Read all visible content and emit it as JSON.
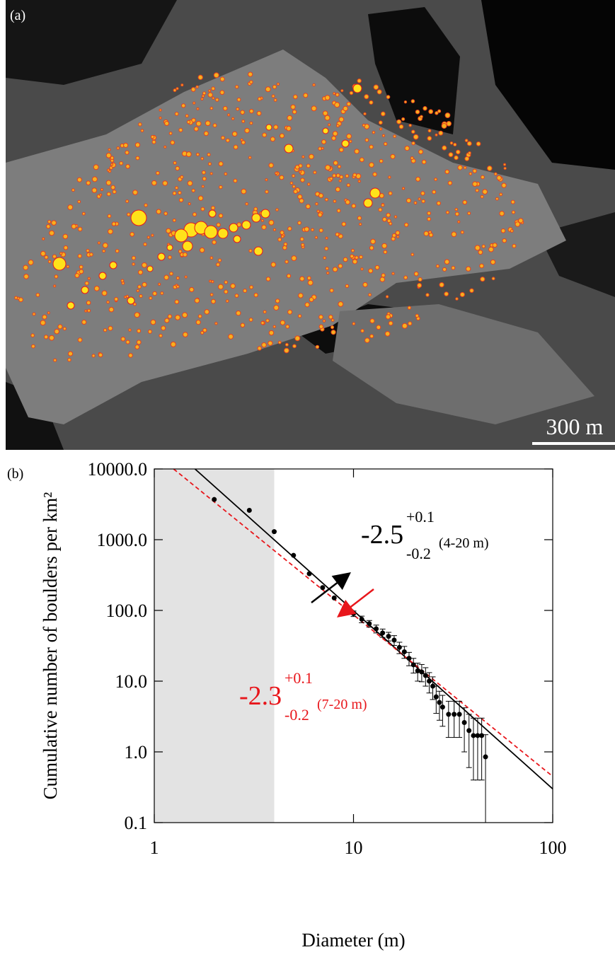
{
  "panel_a": {
    "label": "(a)",
    "scale_bar": "300 m"
  },
  "chart_data": {
    "type": "scatter",
    "panel_label": "(b)",
    "xlabel": "Diameter (m)",
    "ylabel": "Cumulative number of boulders per km²",
    "log_x": true,
    "log_y": true,
    "xlim": [
      1,
      100
    ],
    "ylim": [
      0.1,
      10000
    ],
    "xticks": [
      1,
      10,
      100
    ],
    "yticks": [
      {
        "value": 0.1,
        "label": "0.1"
      },
      {
        "value": 1,
        "label": "1.0"
      },
      {
        "value": 10,
        "label": "10.0"
      },
      {
        "value": 100,
        "label": "100.0"
      },
      {
        "value": 1000,
        "label": "1000.0"
      },
      {
        "value": 10000,
        "label": "10000.0"
      }
    ],
    "shaded_range": [
      1,
      4
    ],
    "series": [
      {
        "color": "#000000",
        "x": [
          2,
          3,
          4,
          5,
          6,
          7,
          8,
          9,
          10,
          11,
          12,
          13,
          14,
          15,
          16,
          17,
          18,
          19,
          20,
          21,
          22,
          23,
          24,
          25,
          26,
          27,
          28,
          30,
          32,
          34,
          36,
          38,
          40,
          42,
          44,
          46
        ],
        "values": [
          3700,
          2600,
          1300,
          600,
          330,
          210,
          150,
          110,
          90,
          75,
          65,
          55,
          48,
          43,
          38,
          30,
          26,
          21,
          17,
          14,
          13.5,
          12,
          10,
          8.5,
          6,
          5,
          4.3,
          3.4,
          3.4,
          3.4,
          2.6,
          2,
          1.7,
          1.7,
          1.7,
          0.85
        ],
        "errors": [
          null,
          null,
          null,
          null,
          null,
          null,
          null,
          null,
          8,
          8,
          7,
          7,
          6.5,
          6,
          6,
          5.5,
          5,
          4.5,
          4,
          4,
          3.7,
          3.5,
          3.2,
          3,
          2.5,
          2.2,
          2,
          1.8,
          1.8,
          1.8,
          1.6,
          1.4,
          1.3,
          1.3,
          1.3,
          0.9
        ]
      }
    ],
    "fits": [
      {
        "color": "#000000",
        "dashed": false,
        "x": [
          1.6,
          100
        ],
        "values": [
          10000,
          0.3
        ]
      },
      {
        "color": "#e8161b",
        "dashed": true,
        "x": [
          1.25,
          100
        ],
        "values": [
          10000,
          0.45
        ]
      }
    ],
    "annotations": [
      {
        "text": "-2.5",
        "sup": "+0.1",
        "sub": "-0.2",
        "range": "(4-20 m)",
        "color": "#000000"
      },
      {
        "text": "-2.3",
        "sup": "+0.1",
        "sub": "-0.2",
        "range": "(7-20 m)",
        "color": "#e8161b"
      }
    ]
  }
}
